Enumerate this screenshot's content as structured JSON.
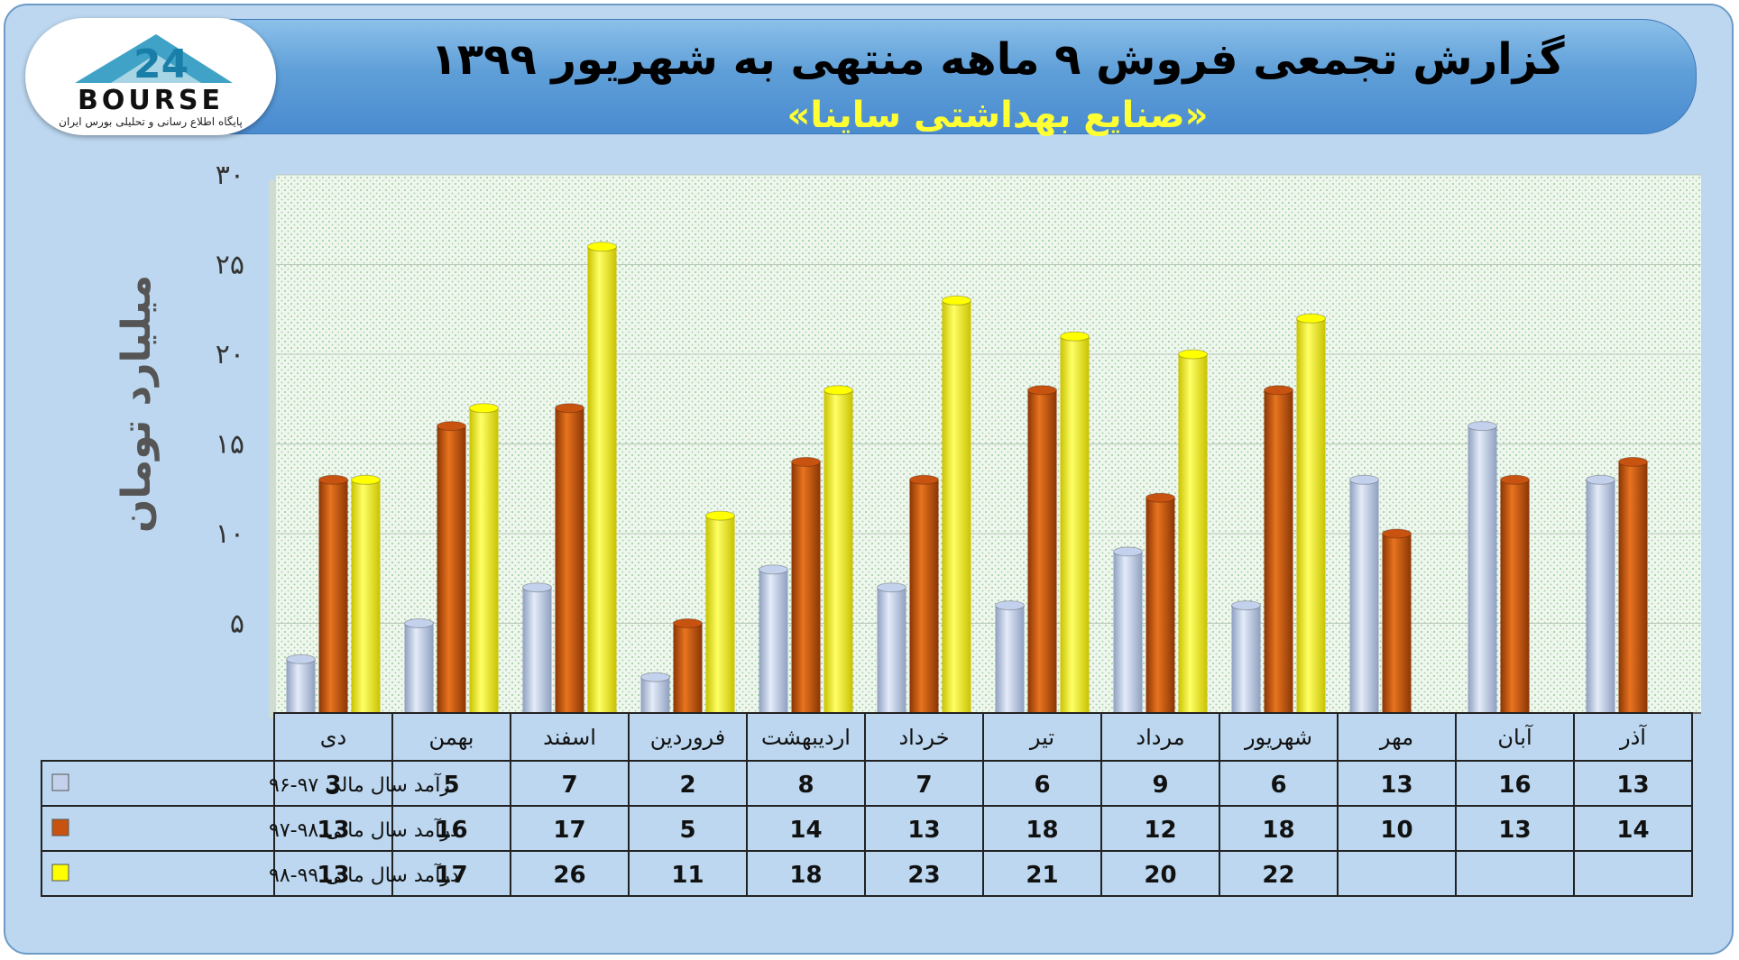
{
  "header": {
    "title": "گزارش تجمعی فروش ۹ ماهه منتهی به شهریور ۱۳۹۹",
    "subtitle": "«صنایع بهداشتی ساینا»"
  },
  "logo": {
    "text": "BOURSE",
    "caption": "پایگاه اطلاع رسانی و تحلیلی بورس ایران"
  },
  "colors": {
    "series1": "#c3d1ec",
    "series2": "#c8520f",
    "series3": "#ffff00",
    "plot_bg": "#eaf3ea"
  },
  "chart_data": {
    "type": "bar",
    "ylabel": "میلیارد تومان",
    "ylim": [
      0,
      30
    ],
    "yticks": [
      "۵",
      "۱۰",
      "۱۵",
      "۲۰",
      "۲۵",
      "۳۰"
    ],
    "categories": [
      "دی",
      "بهمن",
      "اسفند",
      "فروردین",
      "اردیبهشت",
      "خرداد",
      "تیر",
      "مرداد",
      "شهریور",
      "مهر",
      "آبان",
      "آذر"
    ],
    "series": [
      {
        "name": "درآمد سال مالی ۹۷-۹۶",
        "values": [
          3,
          5,
          7,
          2,
          8,
          7,
          6,
          9,
          6,
          13,
          16,
          13
        ]
      },
      {
        "name": "درآمد سال مالی ۹۸-۹۷",
        "values": [
          13,
          16,
          17,
          5,
          14,
          13,
          18,
          12,
          18,
          10,
          13,
          14
        ]
      },
      {
        "name": "درآمد سال مالی ۹۹-۹۸",
        "values": [
          13,
          17,
          26,
          11,
          18,
          23,
          21,
          20,
          22,
          null,
          null,
          null
        ]
      }
    ],
    "grid": true,
    "legend": "data-table"
  }
}
